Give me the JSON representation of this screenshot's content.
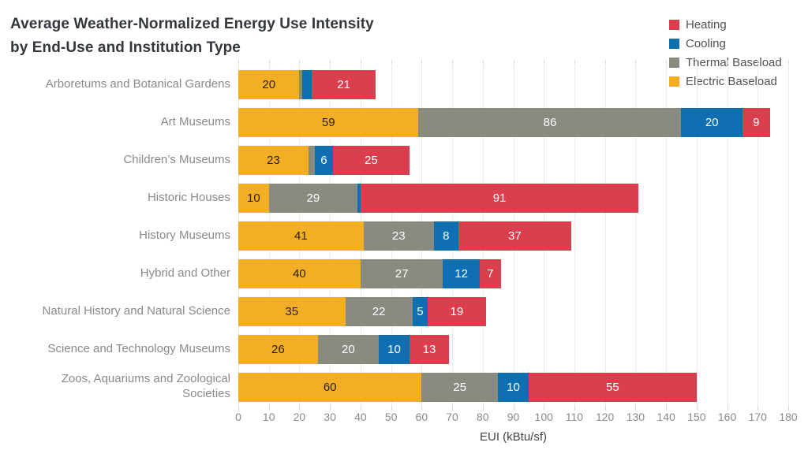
{
  "title": {
    "line1": "Average Weather-Normalized Energy Use Intensity",
    "line2": "by End-Use and Institution Type"
  },
  "legend": [
    {
      "label": "Heating",
      "color": "#db3e4c"
    },
    {
      "label": "Cooling",
      "color": "#0f6fb2"
    },
    {
      "label": "Thermal Baseload",
      "color": "#878b80"
    },
    {
      "label": "Electric Baseload",
      "color": "#f4ae25"
    }
  ],
  "chart_data": {
    "type": "bar",
    "orientation": "horizontal-stacked",
    "title": "Average Weather-Normalized Energy Use Intensity by End-Use and Institution Type",
    "xlabel": "EUI (kBtu/sf)",
    "xlim": [
      0,
      180
    ],
    "xticks": [
      0,
      10,
      20,
      30,
      40,
      50,
      60,
      70,
      80,
      90,
      100,
      110,
      120,
      130,
      140,
      150,
      160,
      170,
      180
    ],
    "grid": true,
    "legend_position": "top-right",
    "series_order": [
      "Electric Baseload",
      "Thermal Baseload",
      "Cooling",
      "Heating"
    ],
    "series_colors": {
      "Electric Baseload": "#f4ae25",
      "Thermal Baseload": "#878b80",
      "Cooling": "#0f6fb2",
      "Heating": "#db3e4c"
    },
    "rows": [
      {
        "category": "Arboretums and Botanical Gardens",
        "values": [
          20,
          1,
          3,
          21
        ],
        "labels": [
          "20",
          "",
          "",
          "21"
        ]
      },
      {
        "category": "Art Museums",
        "values": [
          59,
          86,
          20,
          9
        ],
        "labels": [
          "59",
          "86",
          "20",
          "9"
        ]
      },
      {
        "category": "Children’s Museums",
        "values": [
          23,
          2,
          6,
          25
        ],
        "labels": [
          "23",
          "",
          "6",
          "25"
        ]
      },
      {
        "category": "Historic Houses",
        "values": [
          10,
          29,
          1,
          91
        ],
        "labels": [
          "10",
          "29",
          "",
          "91"
        ]
      },
      {
        "category": "History Museums",
        "values": [
          41,
          23,
          8,
          37
        ],
        "labels": [
          "41",
          "23",
          "8",
          "37"
        ]
      },
      {
        "category": "Hybrid and Other",
        "values": [
          40,
          27,
          12,
          7
        ],
        "labels": [
          "40",
          "27",
          "12",
          "7"
        ]
      },
      {
        "category": "Natural History and Natural Science",
        "values": [
          35,
          22,
          5,
          19
        ],
        "labels": [
          "35",
          "22",
          "5",
          "19"
        ]
      },
      {
        "category": "Science and Technology Museums",
        "values": [
          26,
          20,
          10,
          13
        ],
        "labels": [
          "26",
          "20",
          "10",
          "13"
        ]
      },
      {
        "category": "Zoos, Aquariums and Zoological Societies",
        "values": [
          60,
          25,
          10,
          55
        ],
        "labels": [
          "60",
          "25",
          "10",
          "55"
        ]
      }
    ]
  }
}
